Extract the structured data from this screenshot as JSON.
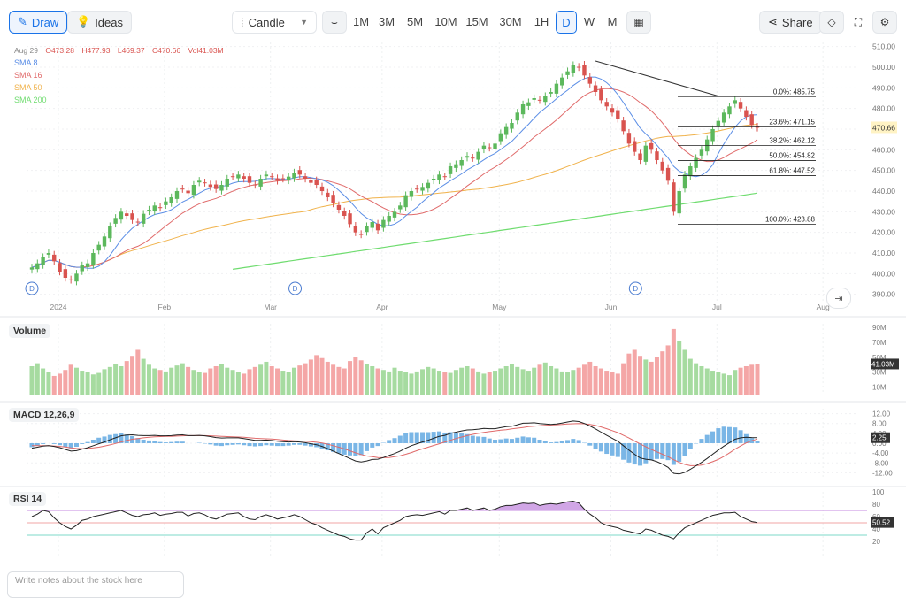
{
  "toolbar": {
    "draw_label": "Draw",
    "ideas_label": "Ideas",
    "chart_type": "Candle",
    "timeframes": [
      "1M",
      "3M",
      "5M",
      "10M",
      "15M",
      "30M",
      "1H",
      "D",
      "W",
      "M"
    ],
    "active_timeframe": "D",
    "share_label": "Share"
  },
  "ohlc": {
    "date": "Aug 29",
    "open": "O473.28",
    "high": "H477.93",
    "low": "L469.37",
    "close": "C470.66",
    "volume": "Vol41.03M"
  },
  "moving_averages": [
    {
      "label": "SMA 8",
      "color": "#5b8ee6"
    },
    {
      "label": "SMA 16",
      "color": "#e06a6a"
    },
    {
      "label": "SMA 50",
      "color": "#f0b24b"
    },
    {
      "label": "SMA 200",
      "color": "#6fdc6f"
    }
  ],
  "colors": {
    "up": "#5cb85c",
    "down": "#d9534f",
    "up_vol": "#a6dba0",
    "down_vol": "#f4a6a6",
    "macd_hist": "#7ab6e6",
    "rsi_fill": "#b36bd6"
  },
  "panes": {
    "volume": "Volume",
    "macd": "MACD 12,26,9",
    "rsi": "RSI 14"
  },
  "last_price_label": "470.66",
  "last_volume_label": "41.03M",
  "last_macd_label": "2.25",
  "last_rsi_label": "50.52",
  "dividend_marker": "D",
  "notes_placeholder": "Write notes about the stock here",
  "chart_data": {
    "type": "candlestick",
    "x_tick_labels": [
      "2024",
      "Feb",
      "Mar",
      "Apr",
      "May",
      "Jun",
      "Jul",
      "Aug"
    ],
    "price_ticks": [
      510,
      500,
      490,
      480,
      470,
      460,
      450,
      440,
      430,
      420,
      410,
      400,
      390
    ],
    "price_range": [
      386,
      512
    ],
    "volume_ticks": [
      "90M",
      "70M",
      "50M",
      "30M",
      "10M"
    ],
    "volume_range": [
      0,
      95
    ],
    "macd_ticks": [
      "12.00",
      "8.00",
      "4.00",
      "0.00",
      "-4.00",
      "-8.00",
      "-12.00"
    ],
    "macd_range": [
      -14,
      14
    ],
    "rsi_ticks": [
      100,
      80,
      60,
      40,
      20
    ],
    "rsi_range": [
      0,
      100
    ],
    "rsi_levels": [
      70,
      50,
      30
    ],
    "fibonacci": [
      {
        "label": "0.0%: 485.75",
        "value": 485.75
      },
      {
        "label": "23.6%: 471.15",
        "value": 471.15
      },
      {
        "label": "38.2%: 462.12",
        "value": 462.12
      },
      {
        "label": "50.0%: 454.82",
        "value": 454.82
      },
      {
        "label": "61.8%: 447.52",
        "value": 447.52
      },
      {
        "label": "100.0%: 423.88",
        "value": 423.88
      }
    ],
    "closes": [
      403,
      405,
      408,
      410,
      406,
      401,
      398,
      397,
      400,
      404,
      405,
      410,
      414,
      418,
      423,
      427,
      430,
      428,
      426,
      425,
      429,
      431,
      433,
      432,
      435,
      437,
      440,
      441,
      439,
      443,
      445,
      444,
      442,
      441,
      443,
      446,
      447,
      448,
      446,
      444,
      443,
      446,
      448,
      447,
      445,
      446,
      447,
      449,
      448,
      446,
      444,
      443,
      440,
      437,
      434,
      431,
      428,
      424,
      420,
      419,
      423,
      425,
      421,
      426,
      428,
      430,
      433,
      438,
      440,
      441,
      442,
      444,
      446,
      448,
      447,
      452,
      453,
      455,
      457,
      456,
      459,
      462,
      461,
      463,
      468,
      471,
      473,
      478,
      482,
      483,
      485,
      484,
      486,
      488,
      492,
      495,
      498,
      501,
      500,
      496,
      492,
      488,
      484,
      481,
      478,
      475,
      469,
      463,
      459,
      455,
      462,
      460,
      455,
      450,
      445,
      430,
      440,
      448,
      452,
      456,
      460,
      465,
      470,
      474,
      478,
      481,
      484,
      480,
      476,
      472,
      470.66
    ],
    "volumes": [
      38,
      42,
      35,
      30,
      25,
      28,
      33,
      40,
      36,
      32,
      30,
      27,
      29,
      34,
      37,
      41,
      38,
      45,
      52,
      60,
      48,
      40,
      35,
      33,
      31,
      36,
      39,
      42,
      37,
      33,
      30,
      29,
      35,
      38,
      41,
      36,
      33,
      30,
      28,
      34,
      37,
      40,
      44,
      38,
      35,
      32,
      30,
      36,
      39,
      42,
      47,
      53,
      49,
      44,
      40,
      37,
      35,
      45,
      50,
      46,
      41,
      38,
      35,
      33,
      31,
      36,
      32,
      30,
      28,
      31,
      34,
      37,
      35,
      32,
      30,
      29,
      33,
      36,
      38,
      35,
      31,
      28,
      30,
      32,
      35,
      38,
      41,
      37,
      34,
      32,
      36,
      40,
      43,
      38,
      35,
      31,
      30,
      33,
      36,
      40,
      44,
      38,
      35,
      32,
      30,
      28,
      42,
      55,
      60,
      52,
      47,
      44,
      50,
      58,
      66,
      88,
      72,
      60,
      48,
      42,
      38,
      35,
      32,
      30,
      28,
      26,
      33,
      36,
      38,
      40,
      41.03
    ],
    "macd": [
      -2,
      -1.6,
      -1.2,
      -1,
      -1.3,
      -1.8,
      -2.5,
      -3.2,
      -3,
      -2.4,
      -1.8,
      -1,
      -0.2,
      0.5,
      1.4,
      2.2,
      3,
      3.3,
      3.4,
      3.2,
      3.1,
      3.1,
      3.2,
      3,
      3,
      3.1,
      3.3,
      3.4,
      3.1,
      3.1,
      3.2,
      3,
      2.7,
      2.3,
      2.1,
      2.2,
      2.2,
      2.2,
      1.9,
      1.5,
      1.2,
      1.2,
      1.3,
      1.1,
      0.8,
      0.6,
      0.5,
      0.6,
      0.5,
      0.2,
      -0.2,
      -0.6,
      -1.3,
      -2.2,
      -3.2,
      -4.2,
      -5.2,
      -6.2,
      -7.2,
      -7.6,
      -7.2,
      -6.6,
      -6.5,
      -5.8,
      -5,
      -4.2,
      -3.2,
      -2,
      -1,
      -0.2,
      0.5,
      1.2,
      2,
      2.8,
      3.2,
      4,
      4.5,
      5,
      5.4,
      5.5,
      5.7,
      6,
      5.9,
      5.9,
      6.3,
      6.7,
      6.9,
      7.5,
      8.1,
      8.2,
      8.3,
      8,
      7.8,
      7.6,
      7.8,
      8.2,
      8.6,
      9,
      8.8,
      8,
      7,
      5.8,
      4.5,
      3.2,
      2,
      0.8,
      -1,
      -2.8,
      -4.5,
      -6,
      -6.5,
      -6.8,
      -7.5,
      -8.5,
      -9.8,
      -12.2,
      -12.5,
      -11.8,
      -10.6,
      -9.2,
      -7.8,
      -6.2,
      -4.5,
      -2.8,
      -1.2,
      0.2,
      1.6,
      2.2,
      2.4,
      2.3,
      2.25
    ],
    "macd_signal": [
      -1,
      -1,
      -1,
      -1,
      -1.1,
      -1.3,
      -1.5,
      -1.9,
      -2.1,
      -2.2,
      -2.1,
      -1.9,
      -1.6,
      -1.2,
      -0.7,
      -0.1,
      0.5,
      1.1,
      1.6,
      1.9,
      2.2,
      2.4,
      2.6,
      2.7,
      2.8,
      2.8,
      2.9,
      3,
      3.1,
      3.1,
      3.1,
      3.1,
      3,
      2.9,
      2.8,
      2.7,
      2.6,
      2.5,
      2.4,
      2.2,
      2,
      1.9,
      1.8,
      1.7,
      1.5,
      1.3,
      1.1,
      1,
      0.9,
      0.8,
      0.6,
      0.4,
      0.1,
      -0.4,
      -1,
      -1.6,
      -2.3,
      -3.1,
      -3.9,
      -4.6,
      -5.2,
      -5.5,
      -5.8,
      -5.9,
      -5.8,
      -5.5,
      -5.1,
      -4.5,
      -3.8,
      -3,
      -2.3,
      -1.6,
      -0.9,
      -0.2,
      0.5,
      1.2,
      1.9,
      2.5,
      3.1,
      3.6,
      4,
      4.4,
      4.7,
      5,
      5.3,
      5.5,
      5.8,
      6.1,
      6.4,
      6.7,
      6.9,
      7.1,
      7.3,
      7.4,
      7.5,
      7.6,
      7.8,
      7.9,
      8,
      7.9,
      7.6,
      7.2,
      6.6,
      5.9,
      5.1,
      4.3,
      3.2,
      2.1,
      0.9,
      -0.3,
      -1.4,
      -2.5,
      -3.5,
      -4.5,
      -5.5,
      -6.7,
      -7.8,
      -8.6,
      -9.1,
      -9.1,
      -8.9,
      -8.3,
      -7.5,
      -6.6,
      -5.4,
      -3.9,
      -2.4,
      -1.1,
      0.1,
      1,
      1.7
    ],
    "rsi": [
      60,
      64,
      70,
      68,
      58,
      50,
      44,
      40,
      46,
      54,
      56,
      60,
      62,
      64,
      66,
      68,
      70,
      66,
      62,
      60,
      63,
      64,
      66,
      62,
      64,
      65,
      67,
      67,
      61,
      65,
      66,
      63,
      58,
      56,
      60,
      64,
      65,
      66,
      60,
      56,
      55,
      60,
      63,
      60,
      56,
      58,
      60,
      63,
      60,
      55,
      50,
      47,
      42,
      38,
      34,
      30,
      28,
      24,
      22,
      22,
      34,
      40,
      32,
      42,
      46,
      50,
      54,
      60,
      62,
      63,
      62,
      64,
      66,
      68,
      64,
      70,
      70,
      72,
      74,
      70,
      72,
      74,
      70,
      72,
      76,
      78,
      78,
      80,
      82,
      81,
      82,
      78,
      80,
      81,
      80,
      82,
      84,
      85,
      82,
      72,
      64,
      58,
      50,
      46,
      44,
      42,
      38,
      36,
      34,
      32,
      40,
      38,
      34,
      30,
      28,
      24,
      34,
      42,
      46,
      50,
      54,
      58,
      62,
      64,
      66,
      66,
      67,
      60,
      56,
      52,
      50.52
    ]
  }
}
